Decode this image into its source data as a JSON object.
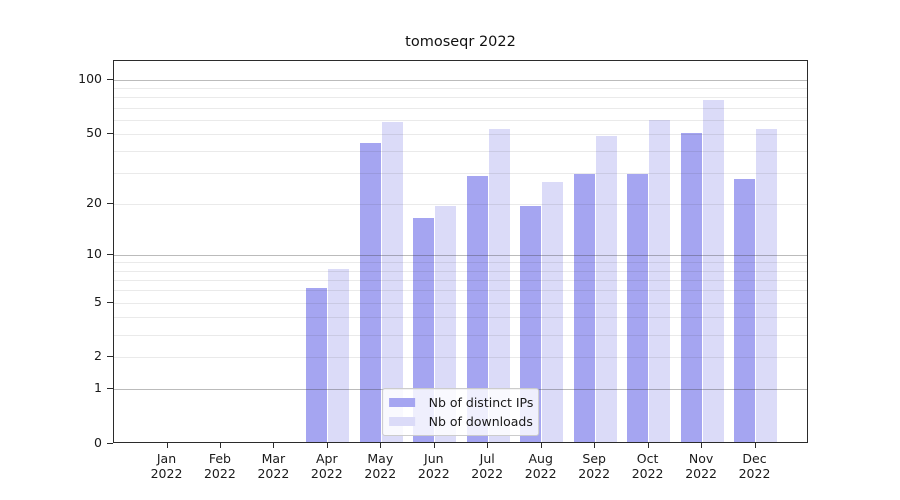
{
  "chart_data": {
    "type": "bar",
    "title": "tomoseqr 2022",
    "categories": [
      "Jan 2022",
      "Feb 2022",
      "Mar 2022",
      "Apr 2022",
      "May 2022",
      "Jun 2022",
      "Jul 2022",
      "Aug 2022",
      "Sep 2022",
      "Oct 2022",
      "Nov 2022",
      "Dec 2022"
    ],
    "series": [
      {
        "name": "Nb of distinct IPs",
        "color": "#a5a5f1",
        "values": [
          0,
          0,
          0,
          6,
          43,
          16,
          28,
          19,
          29,
          29,
          49,
          27
        ]
      },
      {
        "name": "Nb of downloads",
        "color": "#dbdbf8",
        "values": [
          0,
          0,
          0,
          8,
          57,
          19,
          52,
          26,
          47,
          58,
          75,
          52
        ]
      }
    ],
    "xlabel": "",
    "ylabel": "",
    "yscale": "log1p",
    "ylim": [
      0,
      127
    ],
    "yticks": [
      0,
      1,
      2,
      5,
      10,
      20,
      50,
      100
    ],
    "gridlines": {
      "major": [
        1,
        10,
        100
      ],
      "minor": [
        2,
        3,
        4,
        5,
        6,
        7,
        8,
        9,
        20,
        30,
        40,
        50,
        60,
        70,
        80,
        90
      ]
    },
    "grid": "on",
    "legend_position": "lower center"
  },
  "colors": {
    "background": "#ffffff",
    "spine": "#2b2b2b",
    "grid_major": "rgba(60,60,60,0.35)",
    "grid_minor": "rgba(60,60,60,0.11)",
    "text": "#1a1a1a"
  }
}
